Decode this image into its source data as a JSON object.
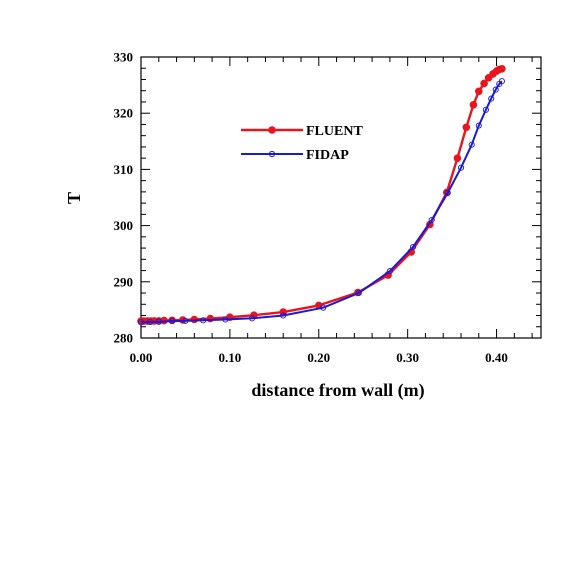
{
  "chart_data": {
    "type": "line",
    "xlabel": "distance from wall (m)",
    "ylabel": "T",
    "xlim": [
      0.0,
      0.45
    ],
    "ylim": [
      280,
      330
    ],
    "xticks": [
      0.0,
      0.1,
      0.2,
      0.3,
      0.4
    ],
    "xtick_labels": [
      "0.00",
      "0.10",
      "0.20",
      "0.30",
      "0.40"
    ],
    "yticks": [
      280,
      290,
      300,
      310,
      320,
      330
    ],
    "ytick_labels": [
      "280",
      "290",
      "300",
      "310",
      "320",
      "330"
    ],
    "legend_position": "upper-center",
    "grid": false,
    "series": [
      {
        "name": "FLUENT",
        "color": "#e8141e",
        "marker": "filled-circle",
        "x": [
          0.0,
          0.003,
          0.007,
          0.011,
          0.015,
          0.02,
          0.026,
          0.035,
          0.047,
          0.06,
          0.078,
          0.1,
          0.127,
          0.16,
          0.2,
          0.244,
          0.278,
          0.304,
          0.325,
          0.344,
          0.356,
          0.366,
          0.374,
          0.38,
          0.386,
          0.391,
          0.396,
          0.4,
          0.403,
          0.406
        ],
        "values": [
          283.0,
          283.0,
          283.0,
          283.0,
          283.05,
          283.05,
          283.1,
          283.15,
          283.2,
          283.3,
          283.45,
          283.7,
          284.05,
          284.6,
          285.8,
          288.1,
          291.2,
          295.3,
          300.2,
          305.9,
          312.0,
          317.5,
          321.5,
          323.9,
          325.3,
          326.3,
          327.0,
          327.5,
          327.8,
          327.9
        ]
      },
      {
        "name": "FIDAP",
        "color": "#1a1ad2",
        "marker": "open-circle",
        "x": [
          0.0,
          0.01,
          0.02,
          0.035,
          0.05,
          0.07,
          0.095,
          0.125,
          0.16,
          0.205,
          0.245,
          0.28,
          0.306,
          0.327,
          0.345,
          0.36,
          0.372,
          0.38,
          0.388,
          0.394,
          0.399,
          0.403,
          0.406
        ],
        "values": [
          282.8,
          282.85,
          282.9,
          283.0,
          283.05,
          283.15,
          283.3,
          283.5,
          284.0,
          285.4,
          288.0,
          291.9,
          296.2,
          301.0,
          305.8,
          310.3,
          314.4,
          317.8,
          320.6,
          322.6,
          324.2,
          325.2,
          325.7
        ]
      }
    ]
  }
}
